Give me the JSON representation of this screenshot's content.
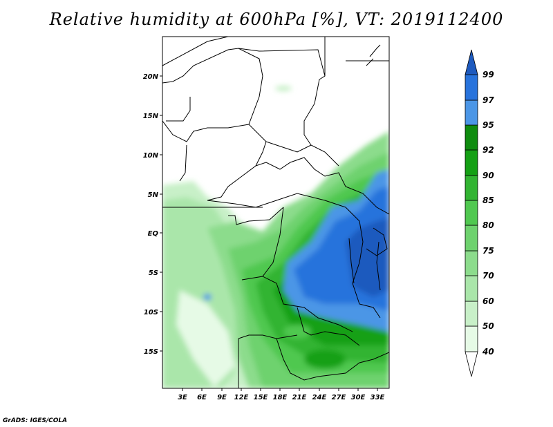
{
  "title": "Relative humidity at 600hPa [%], VT: 2019112400",
  "credit": "GrADS: IGES/COLA",
  "map": {
    "y_axis_labels": [
      "20N",
      "15N",
      "10N",
      "5N",
      "EQ",
      "5S",
      "10S",
      "15S"
    ],
    "x_axis_labels": [
      "3E",
      "6E",
      "9E",
      "12E",
      "15E",
      "18E",
      "21E",
      "24E",
      "27E",
      "30E",
      "33E"
    ]
  },
  "colorbar": {
    "levels": [
      "40",
      "50",
      "60",
      "70",
      "75",
      "80",
      "85",
      "90",
      "92",
      "95",
      "97",
      "99"
    ],
    "colors": [
      "#ffffff",
      "#e6fae6",
      "#c8f0c8",
      "#aae6aa",
      "#8cdc8c",
      "#6ed26e",
      "#50c850",
      "#32b432",
      "#14a014",
      "#0f8c0f",
      "#4b96e6",
      "#2873dc",
      "#1e5abe"
    ]
  }
}
